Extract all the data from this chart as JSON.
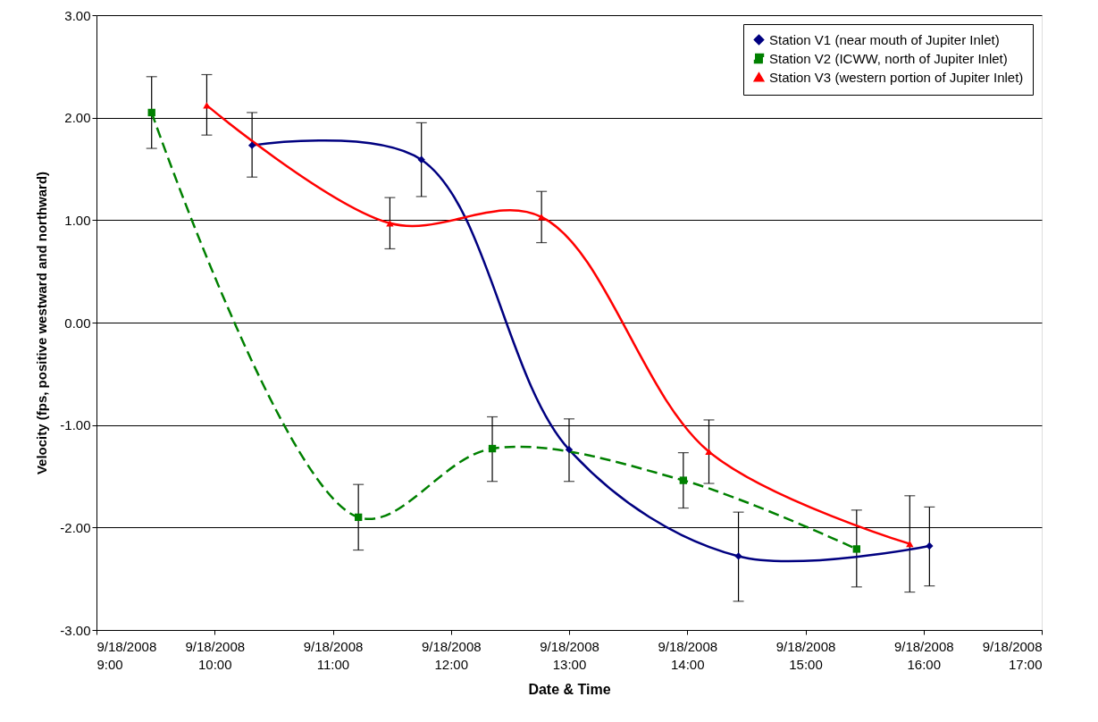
{
  "chart_data": {
    "type": "line",
    "xlabel": "Date & Time",
    "ylabel": "Velocity (fps, positive westward and northward)",
    "xlim": [
      "2008-09-18T09:00",
      "2008-09-18T17:00"
    ],
    "xticks": [
      {
        "value": "2008-09-18T09:00",
        "label": "9/18/2008\n9:00"
      },
      {
        "value": "2008-09-18T10:00",
        "label": "9/18/2008\n10:00"
      },
      {
        "value": "2008-09-18T11:00",
        "label": "9/18/2008\n11:00"
      },
      {
        "value": "2008-09-18T12:00",
        "label": "9/18/2008\n12:00"
      },
      {
        "value": "2008-09-18T13:00",
        "label": "9/18/2008\n13:00"
      },
      {
        "value": "2008-09-18T14:00",
        "label": "9/18/2008\n14:00"
      },
      {
        "value": "2008-09-18T15:00",
        "label": "9/18/2008\n15:00"
      },
      {
        "value": "2008-09-18T16:00",
        "label": "9/18/2008\n16:00"
      },
      {
        "value": "2008-09-18T17:00",
        "label": "9/18/2008\n17:00"
      }
    ],
    "ylim": [
      -3,
      3
    ],
    "yticks": [
      {
        "value": -3,
        "label": "-3.00"
      },
      {
        "value": -2,
        "label": "-2.00"
      },
      {
        "value": -1,
        "label": "-1.00"
      },
      {
        "value": 0,
        "label": "0.00"
      },
      {
        "value": 1,
        "label": "1.00"
      },
      {
        "value": 2,
        "label": "2.00"
      },
      {
        "value": 3,
        "label": "3.00"
      }
    ],
    "grid": "y",
    "legend": "top right",
    "series": [
      {
        "name": "Station V1 (near mouth of Jupiter Inlet)",
        "color": "#000080",
        "marker": "diamond",
        "line_style": "solid",
        "x": [
          "2008-09-18T10:19",
          "2008-09-18T11:45",
          "2008-09-18T13:00",
          "2008-09-18T14:26",
          "2008-09-18T16:03"
        ],
        "values": [
          1.73,
          1.59,
          -1.24,
          -2.28,
          -2.18
        ],
        "errors": [
          [
            1.42,
            2.05
          ],
          [
            1.23,
            1.95
          ],
          [
            -1.55,
            -0.94
          ],
          [
            -2.72,
            -1.85
          ],
          [
            -2.57,
            -1.8
          ]
        ]
      },
      {
        "name": "Station V2 (ICWW, north of Jupiter Inlet)",
        "color": "#008000",
        "marker": "square",
        "line_style": "dashed",
        "x": [
          "2008-09-18T09:28",
          "2008-09-18T11:13",
          "2008-09-18T12:21",
          "2008-09-18T13:58",
          "2008-09-18T15:26"
        ],
        "values": [
          2.05,
          -1.9,
          -1.23,
          -1.54,
          -2.21
        ],
        "errors": [
          [
            1.7,
            2.4
          ],
          [
            -2.22,
            -1.58
          ],
          [
            -1.55,
            -0.92
          ],
          [
            -1.81,
            -1.27
          ],
          [
            -2.58,
            -1.83
          ]
        ]
      },
      {
        "name": "Station V3 (western portion of Jupiter Inlet)",
        "color": "#ff0000",
        "marker": "triangle",
        "line_style": "solid",
        "x": [
          "2008-09-18T09:56",
          "2008-09-18T11:29",
          "2008-09-18T12:46",
          "2008-09-18T14:11",
          "2008-09-18T15:53"
        ],
        "values": [
          2.12,
          0.97,
          1.03,
          -1.26,
          -2.16
        ],
        "errors": [
          [
            1.83,
            2.42
          ],
          [
            0.72,
            1.22
          ],
          [
            0.78,
            1.28
          ],
          [
            -1.57,
            -0.95
          ],
          [
            -2.63,
            -1.69
          ]
        ]
      }
    ]
  }
}
